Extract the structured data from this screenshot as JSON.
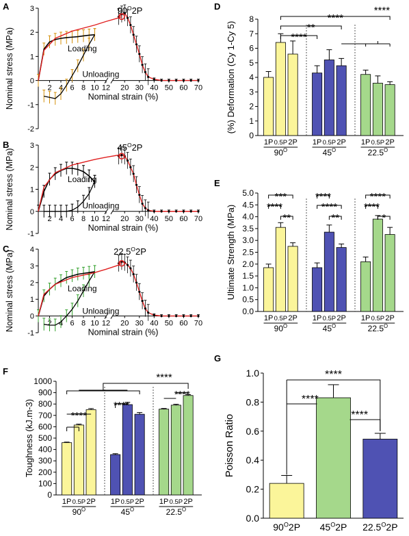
{
  "colors": {
    "yellow": "#fbf59a",
    "blue": "#4f52b3",
    "green": "#a5d88b",
    "red": "#e02020",
    "green_err": "#33a02c",
    "orange_err": "#d4900a",
    "black": "#000000"
  },
  "chart_data": [
    {
      "panel": "A",
      "type": "line",
      "title": "90O2P",
      "title_main": "90",
      "title_sup": "O",
      "title_tail": "2P",
      "xlabel": "Nominal strain (%)",
      "ylabel": "Nominal stress (MPa)",
      "axis_break": true,
      "xticks_left": [
        "2",
        "4",
        "6",
        "8",
        "10",
        "12"
      ],
      "xticks_right": [
        "20",
        "30",
        "40",
        "50",
        "60",
        "70"
      ],
      "yticks": [
        "-2",
        "-1",
        "0",
        "1",
        "2",
        "3"
      ],
      "ylim": [
        -2,
        3
      ],
      "annotations": [
        "Loading",
        "Unloading"
      ],
      "err_color": "orange_err",
      "series": [
        {
          "name": "Loading",
          "x": [
            0,
            1,
            2,
            3,
            4,
            5,
            6,
            7,
            8,
            9,
            10
          ],
          "y": [
            0,
            1.3,
            1.6,
            1.7,
            1.75,
            1.78,
            1.8,
            1.82,
            1.85,
            1.88,
            1.9
          ]
        },
        {
          "name": "Unloading",
          "x": [
            10,
            9,
            8,
            7,
            6,
            5,
            4,
            3,
            2,
            1
          ],
          "y": [
            1.9,
            1.5,
            1.05,
            0.6,
            0.2,
            -0.2,
            -0.55,
            -0.75,
            -0.7,
            -0.65
          ]
        },
        {
          "name": "Fit",
          "x": [
            0,
            1,
            3,
            6,
            10,
            12,
            16,
            18
          ],
          "y": [
            0,
            1.25,
            1.75,
            2.05,
            2.3,
            2.45,
            2.6,
            2.65
          ]
        },
        {
          "name": "Failure",
          "x": [
            16,
            18,
            20,
            22,
            24,
            26,
            28,
            30,
            32,
            34,
            36,
            40,
            45,
            50,
            55,
            60,
            65,
            70
          ],
          "y": [
            2.65,
            2.75,
            2.8,
            2.6,
            2.3,
            1.9,
            1.5,
            1.1,
            0.65,
            0.35,
            0.15,
            0.05,
            0,
            0,
            0,
            0,
            0,
            0
          ]
        }
      ]
    },
    {
      "panel": "B",
      "type": "line",
      "title": "45O2P",
      "title_main": "45",
      "title_sup": "O",
      "title_tail": "2P",
      "xlabel": "Nominal strain (%)",
      "ylabel": "Nominal stress (MPa)",
      "axis_break": true,
      "xticks_left": [
        "2",
        "4",
        "6",
        "8",
        "10",
        "12"
      ],
      "xticks_right": [
        "20",
        "30",
        "40",
        "50",
        "60",
        "70"
      ],
      "yticks": [
        "-1",
        "0",
        "1",
        "2",
        "3"
      ],
      "ylim": [
        -1,
        3
      ],
      "annotations": [
        "Loading",
        "Unloading"
      ],
      "err_color": "black",
      "series": [
        {
          "name": "Loading",
          "x": [
            0,
            1,
            2,
            3,
            4,
            5,
            6,
            7,
            8,
            9,
            10
          ],
          "y": [
            0,
            0.9,
            1.45,
            1.7,
            1.85,
            1.95,
            1.95,
            1.9,
            1.8,
            1.6,
            1.35
          ]
        },
        {
          "name": "Unloading",
          "x": [
            10,
            9,
            8,
            7,
            6,
            5,
            4,
            3,
            2,
            1
          ],
          "y": [
            1.35,
            0.8,
            0.45,
            0.2,
            0.05,
            0,
            0,
            0,
            0,
            0
          ]
        },
        {
          "name": "Fit",
          "x": [
            0,
            1,
            3,
            6,
            10,
            12,
            16,
            18
          ],
          "y": [
            0,
            1.1,
            1.75,
            2.1,
            2.35,
            2.45,
            2.55,
            2.5
          ]
        },
        {
          "name": "Failure",
          "x": [
            16,
            18,
            20,
            22,
            24,
            26,
            28,
            30,
            32,
            34,
            36,
            40,
            45,
            50,
            55,
            60,
            65,
            70
          ],
          "y": [
            2.5,
            2.55,
            2.5,
            2.3,
            2.0,
            1.7,
            1.2,
            0.75,
            0.35,
            0.15,
            0.05,
            0,
            0,
            0,
            0,
            0,
            0,
            0
          ]
        }
      ]
    },
    {
      "panel": "C",
      "type": "line",
      "title": "22.5O2P",
      "title_main": "22.5",
      "title_sup": "O",
      "title_tail": "2P",
      "xlabel": "Nominal strain (%)",
      "ylabel": "Nominal stress (MPa)",
      "axis_break": true,
      "xticks_left": [
        "2",
        "4",
        "6",
        "8",
        "10",
        "12"
      ],
      "xticks_right": [
        "20",
        "30",
        "40",
        "50",
        "60",
        "70"
      ],
      "yticks": [
        "-1",
        "0",
        "1",
        "2",
        "3",
        "4"
      ],
      "ylim": [
        -1,
        4
      ],
      "annotations": [
        "Loading",
        "Unloading"
      ],
      "err_color": "green_err",
      "series": [
        {
          "name": "Loading",
          "x": [
            0,
            1,
            2,
            3,
            4,
            5,
            6,
            7,
            8,
            9,
            10
          ],
          "y": [
            0,
            1.2,
            1.6,
            1.9,
            2.1,
            2.3,
            2.4,
            2.5,
            2.55,
            2.6,
            2.65
          ]
        },
        {
          "name": "Unloading",
          "x": [
            10,
            9,
            8,
            7,
            6,
            5,
            4,
            3,
            2,
            1
          ],
          "y": [
            2.65,
            2.1,
            1.5,
            0.9,
            0.4,
            0,
            -0.35,
            -0.55,
            -0.55,
            -0.5
          ]
        },
        {
          "name": "Fit",
          "x": [
            0,
            1,
            3,
            6,
            10,
            12,
            16,
            18
          ],
          "y": [
            0,
            1.3,
            1.9,
            2.3,
            2.6,
            2.8,
            3.05,
            3.15
          ]
        },
        {
          "name": "Failure",
          "x": [
            16,
            18,
            20,
            22,
            24,
            26,
            28,
            30,
            32,
            34,
            36,
            40,
            45,
            50,
            55,
            60,
            65,
            70
          ],
          "y": [
            3.15,
            3.25,
            3.2,
            3.05,
            2.85,
            2.5,
            2.0,
            1.45,
            0.9,
            0.45,
            0.2,
            0.05,
            0,
            0,
            0,
            0,
            0,
            0
          ]
        }
      ]
    },
    {
      "panel": "D",
      "type": "bar",
      "ylabel": "(%) Deformation (Cy 1-Cy 5)",
      "ylim": [
        0,
        8
      ],
      "yticks": [
        "0",
        "1",
        "2",
        "3",
        "4",
        "5",
        "6",
        "7",
        "8"
      ],
      "group_labels": [
        [
          "90",
          "O"
        ],
        [
          "45",
          "O"
        ],
        [
          "22.5",
          "O"
        ]
      ],
      "bar_labels": [
        "1P",
        "0.5P",
        "2P"
      ],
      "series": [
        {
          "group": "90",
          "color": "yellow",
          "values": [
            4.0,
            6.4,
            5.6
          ],
          "err": [
            0.4,
            0.6,
            0.9
          ]
        },
        {
          "group": "45",
          "color": "blue",
          "values": [
            4.3,
            5.2,
            4.8
          ],
          "err": [
            0.5,
            0.7,
            0.5
          ]
        },
        {
          "group": "22.5",
          "color": "green",
          "values": [
            4.2,
            3.6,
            3.5
          ],
          "err": [
            0.3,
            0.5,
            0.2
          ]
        }
      ],
      "significance": [
        "****",
        "**",
        "****",
        "****"
      ]
    },
    {
      "panel": "E",
      "type": "bar",
      "ylabel": "Ultimate Strength (MPa)",
      "ylim": [
        0,
        5
      ],
      "yticks": [
        "0.0",
        "0.5",
        "1.0",
        "1.5",
        "2.0",
        "2.5",
        "3.0",
        "3.5",
        "4.0",
        "4.5",
        "5.0"
      ],
      "group_labels": [
        [
          "90",
          "O"
        ],
        [
          "45",
          "O"
        ],
        [
          "22.5",
          "O"
        ]
      ],
      "bar_labels": [
        "1P",
        "0.5P",
        "2P"
      ],
      "series": [
        {
          "group": "90",
          "color": "yellow",
          "values": [
            1.85,
            3.55,
            2.75
          ],
          "err": [
            0.15,
            0.2,
            0.15
          ]
        },
        {
          "group": "45",
          "color": "blue",
          "values": [
            1.85,
            3.35,
            2.7
          ],
          "err": [
            0.2,
            0.3,
            0.15
          ]
        },
        {
          "group": "22.5",
          "color": "green",
          "values": [
            2.1,
            3.9,
            3.25
          ],
          "err": [
            0.2,
            0.15,
            0.3
          ]
        }
      ],
      "significance": [
        "***",
        "****",
        "**",
        "****",
        "****",
        "**",
        "****",
        "****",
        "*"
      ]
    },
    {
      "panel": "F",
      "type": "bar",
      "ylabel": "Toughness (kJ.m-3)",
      "ylim": [
        0,
        1000
      ],
      "yticks": [
        "0",
        "100",
        "200",
        "300",
        "400",
        "500",
        "600",
        "700",
        "800",
        "900",
        "1000"
      ],
      "group_labels": [
        [
          "90",
          "O"
        ],
        [
          "45",
          "O"
        ],
        [
          "22.5",
          "O"
        ]
      ],
      "bar_labels": [
        "1P",
        "0.5P",
        "2P"
      ],
      "series": [
        {
          "group": "90",
          "color": "yellow",
          "values": [
            460,
            615,
            750
          ],
          "err": [
            5,
            8,
            10
          ]
        },
        {
          "group": "45",
          "color": "blue",
          "values": [
            355,
            795,
            710
          ],
          "err": [
            8,
            20,
            15
          ]
        },
        {
          "group": "22.5",
          "color": "green",
          "values": [
            755,
            790,
            875
          ],
          "err": [
            6,
            8,
            8
          ]
        }
      ],
      "significance": [
        "****",
        "****",
        "****",
        "****"
      ]
    },
    {
      "panel": "G",
      "type": "bar",
      "ylabel": "Poisson Ratio",
      "ylim": [
        0,
        1
      ],
      "yticks": [
        "0.0",
        "0.2",
        "0.4",
        "0.6",
        "0.8",
        "1.0"
      ],
      "categories": [
        [
          "90",
          "O",
          "2P"
        ],
        [
          "45",
          "O",
          "2P"
        ],
        [
          "22.5",
          "O",
          "2P"
        ]
      ],
      "series": [
        {
          "colors": [
            "yellow",
            "green",
            "blue"
          ],
          "values": [
            0.24,
            0.83,
            0.545
          ],
          "err": [
            0.055,
            0.09,
            0.04
          ]
        }
      ],
      "significance": [
        "****",
        "****",
        "****"
      ]
    }
  ]
}
